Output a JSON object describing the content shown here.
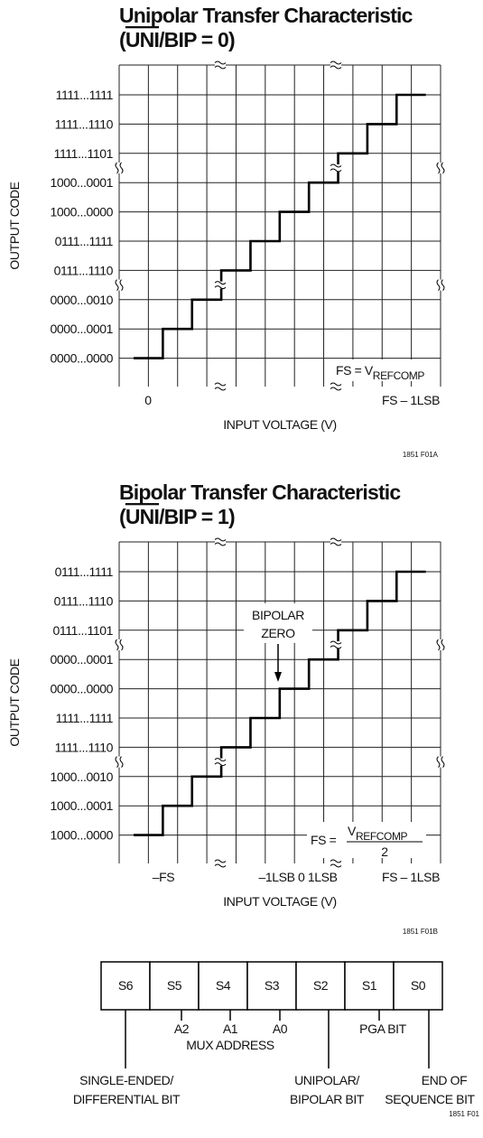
{
  "figures": [
    {
      "title": "Unipolar Transfer Characteristic",
      "condition": [
        "(",
        "UNI",
        "/BIP = 0)"
      ],
      "y_axis_label": "OUTPUT CODE",
      "output_codes": [
        "1111...1111",
        "1111...1110",
        "1111...1101",
        "1000...0001",
        "1000...0000",
        "0111...1111",
        "0111...1110",
        "0000...0010",
        "0000...0001",
        "0000...0000"
      ],
      "x_labels": [
        "0",
        "FS – 1LSB"
      ],
      "x_axis_label": "INPUT VOLTAGE (V)",
      "fs_label": {
        "prefix": "FS = V",
        "subscript": "REFCOMP"
      },
      "figure_id": "1851 F01A"
    },
    {
      "title": "Bipolar Transfer Characteristic",
      "condition": [
        "(",
        "UNI",
        "/BIP = 1)"
      ],
      "y_axis_label": "OUTPUT CODE",
      "output_codes": [
        "0111...1111",
        "0111...1110",
        "0111...1101",
        "0000...0001",
        "0000...0000",
        "1111...1111",
        "1111...1110",
        "1000...0010",
        "1000...0001",
        "1000...0000"
      ],
      "x_labels": [
        "–FS",
        "–1LSB  0 1LSB",
        "FS – 1LSB"
      ],
      "x_axis_label": "INPUT VOLTAGE (V)",
      "annotation": [
        "BIPOLAR",
        "ZERO"
      ],
      "fs_label": {
        "prefix": "FS = ",
        "numerator": [
          "V",
          "REFCOMP"
        ],
        "denominator": "2"
      },
      "figure_id": "1851 F01B"
    }
  ],
  "register": {
    "cells": [
      "S6",
      "S5",
      "S4",
      "S3",
      "S2",
      "S1",
      "S0"
    ],
    "address_bits": [
      "A2",
      "A1",
      "A0"
    ],
    "mux_label": "MUX ADDRESS",
    "pga_label": "PGA BIT",
    "single_ended": [
      "SINGLE-ENDED/",
      "DIFFERENTIAL BIT"
    ],
    "unipolar": [
      "UNIPOLAR/",
      "BIPOLAR BIT"
    ],
    "end_of_sequence": [
      "END OF",
      "SEQUENCE BIT"
    ],
    "figure_id": "1851 F01"
  }
}
